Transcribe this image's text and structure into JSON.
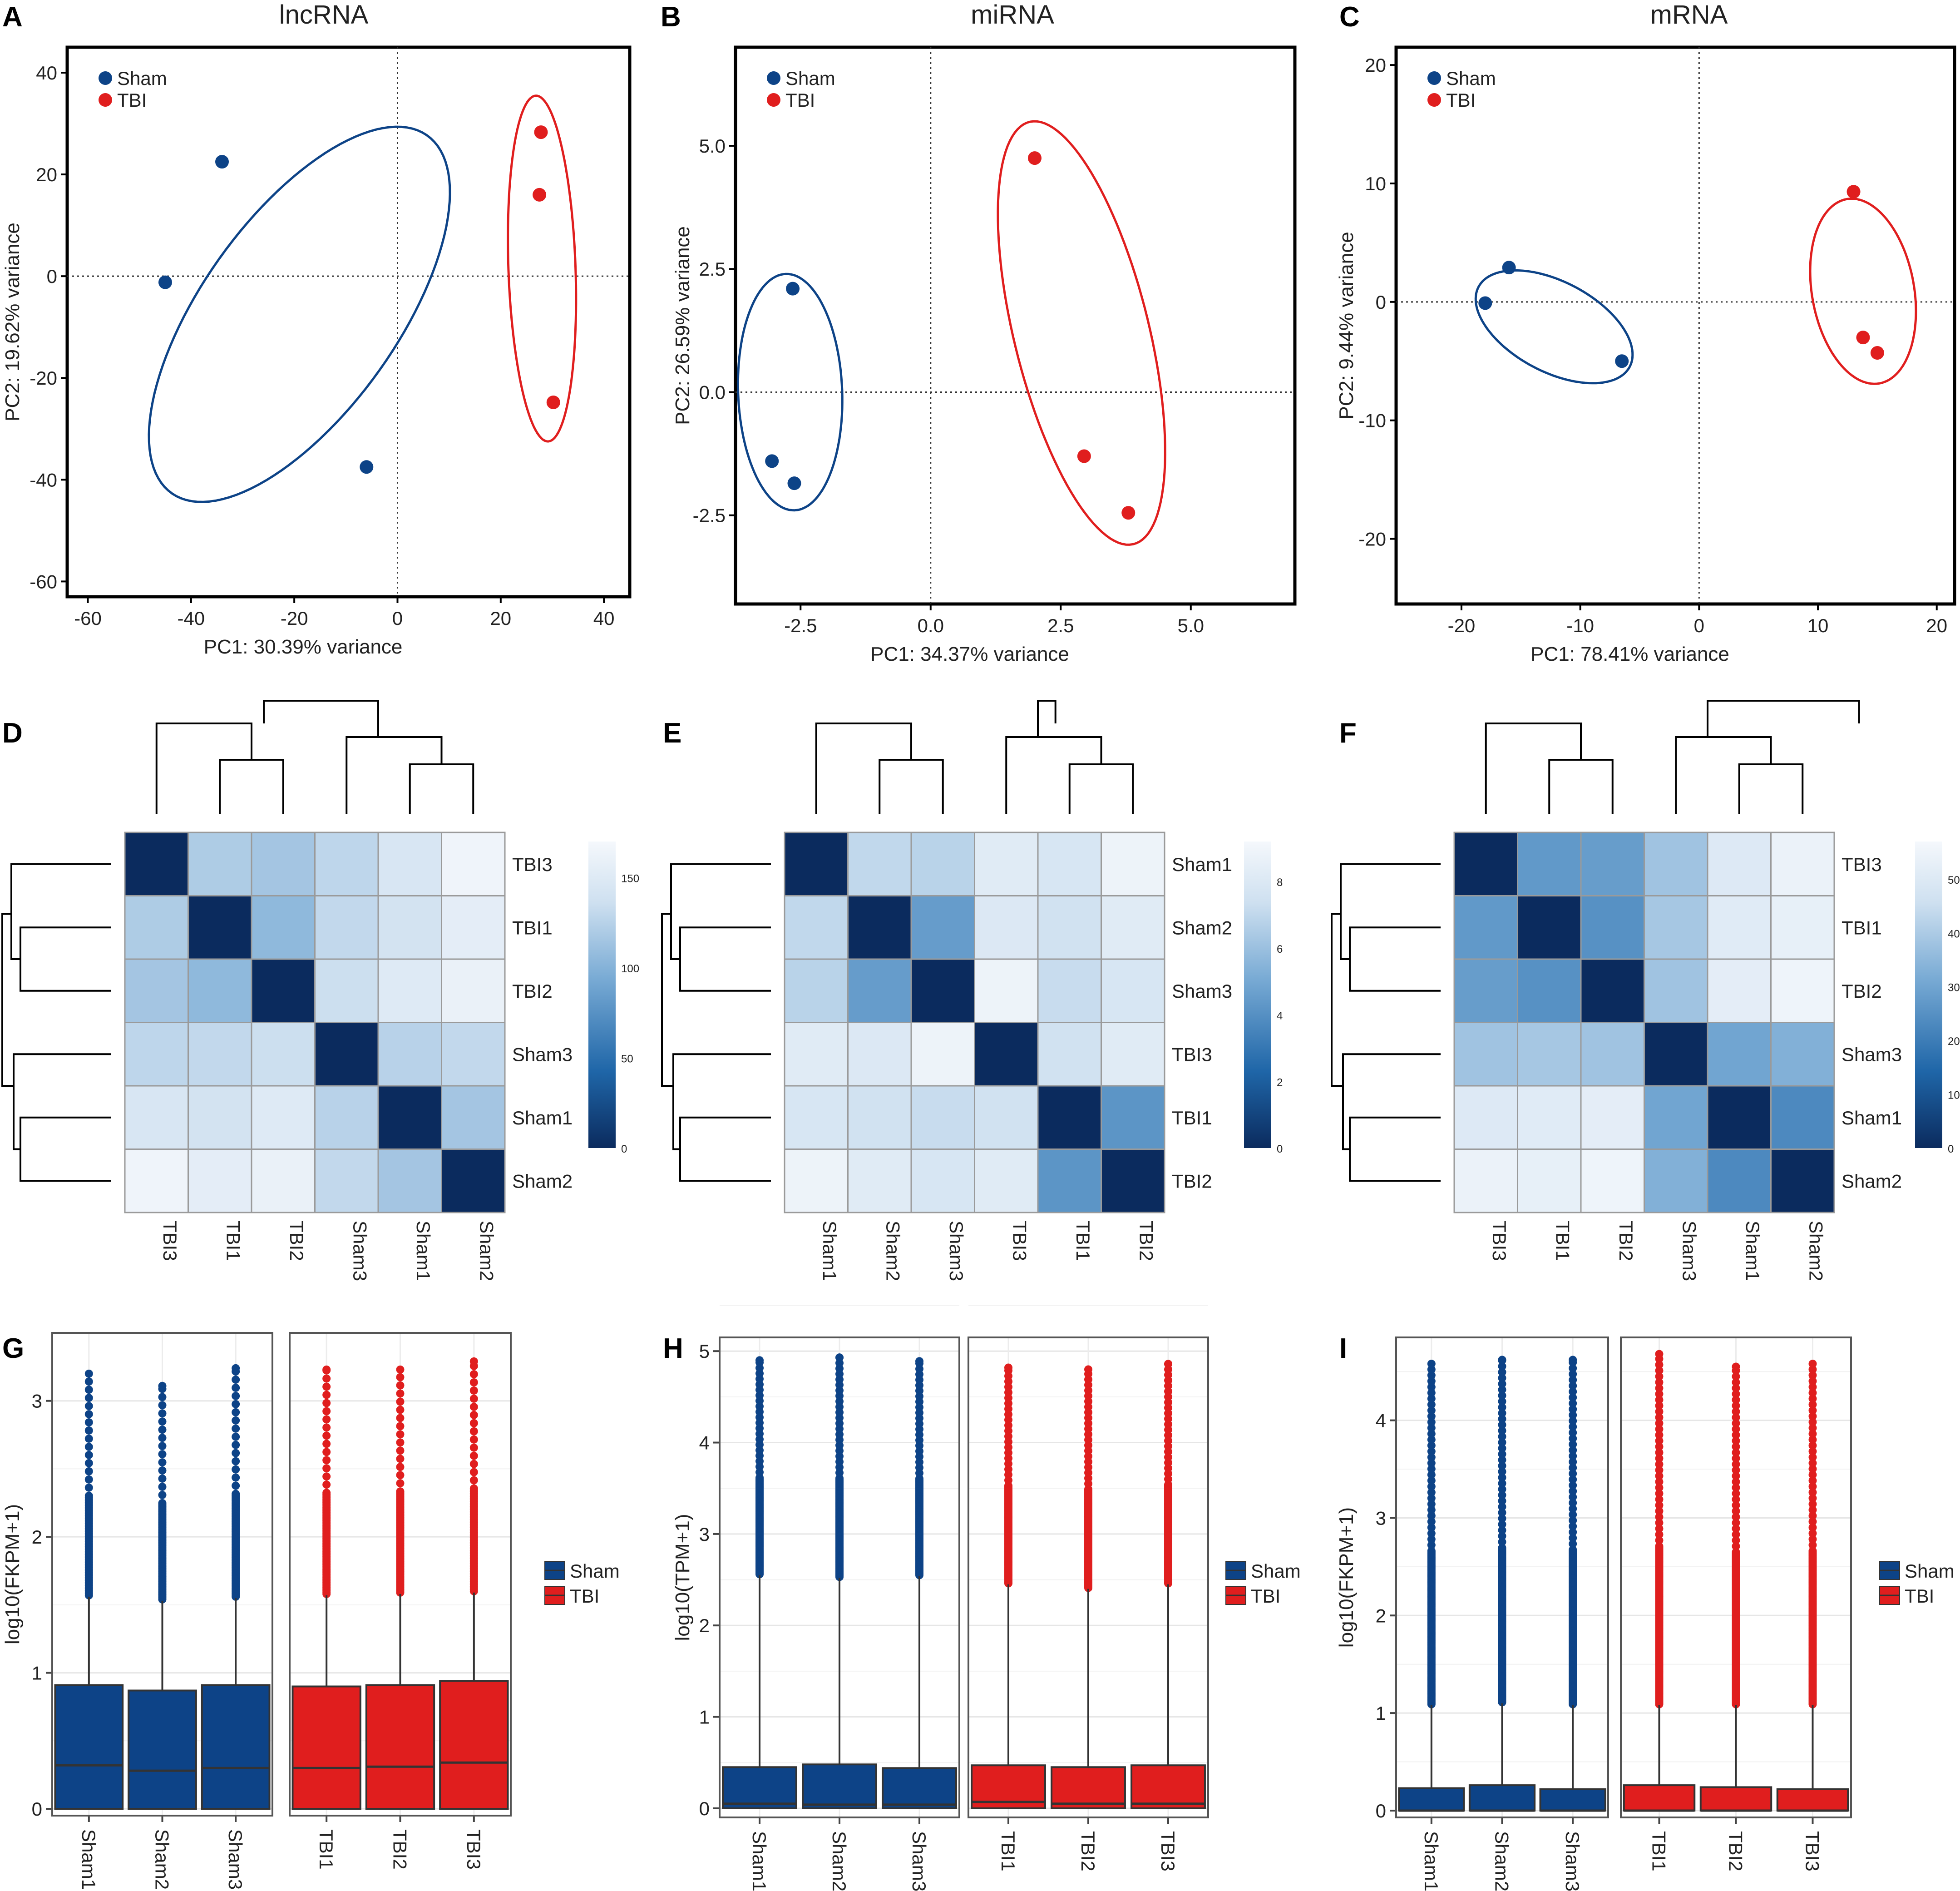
{
  "colors": {
    "sham": "#0D4387",
    "tbi": "#E01E1E",
    "heat_dark": "#0B2B5E",
    "heat_light": "#F5F8FC"
  },
  "chart_data": [
    {
      "panel": "A",
      "type": "scatter",
      "title": "lncRNA",
      "xlabel": "PC1: 30.39% variance",
      "ylabel": "PC2: 19.62% variance",
      "xlim": [
        -64,
        45
      ],
      "ylim": [
        -63,
        45
      ],
      "xticks": [
        -60,
        -40,
        -20,
        0,
        20,
        40
      ],
      "yticks": [
        -60,
        -40,
        -20,
        0,
        20,
        40
      ],
      "xtick_labels": [
        "-60",
        "-40",
        "-20",
        "0",
        "20",
        "40"
      ],
      "ytick_labels": [
        "-60",
        "-40",
        "-20",
        "0",
        "20",
        "40"
      ],
      "legend": [
        "Sham",
        "TBI"
      ],
      "series": [
        {
          "name": "Sham",
          "x": [
            -34,
            -45,
            -6
          ],
          "y": [
            22.5,
            -1.2,
            -37.5
          ],
          "ellipse": {
            "cx": -19,
            "cy": -7.5,
            "rx": 43,
            "ry": 19,
            "angle": 55
          }
        },
        {
          "name": "TBI",
          "x": [
            27.8,
            27.5,
            30.2
          ],
          "y": [
            28.3,
            16,
            -24.8
          ],
          "ellipse": {
            "cx": 28,
            "cy": 1.5,
            "rx": 34,
            "ry": 6.5,
            "angle": 92
          }
        }
      ]
    },
    {
      "panel": "B",
      "type": "scatter",
      "title": "miRNA",
      "xlabel": "PC1: 34.37% variance",
      "ylabel": "PC2: 26.59% variance",
      "xlim": [
        -3.75,
        7
      ],
      "ylim": [
        -4.3,
        7.0
      ],
      "xticks": [
        -2.5,
        0,
        2.5,
        5.0
      ],
      "yticks": [
        -2.5,
        0,
        2.5,
        5.0
      ],
      "xtick_labels": [
        "-2.5",
        "0.0",
        "2.5",
        "5.0"
      ],
      "ytick_labels": [
        "-2.5",
        "0.0",
        "2.5",
        "5.0"
      ],
      "legend": [
        "Sham",
        "TBI"
      ],
      "series": [
        {
          "name": "Sham",
          "x": [
            -2.65,
            -3.05,
            -2.62
          ],
          "y": [
            2.1,
            -1.4,
            -1.85
          ],
          "ellipse": {
            "cx": -2.7,
            "cy": 0,
            "rx": 2.4,
            "ry": 1.0,
            "angle": 92
          }
        },
        {
          "name": "TBI",
          "x": [
            2.0,
            2.95,
            3.8
          ],
          "y": [
            4.75,
            -1.3,
            -2.45
          ],
          "ellipse": {
            "cx": 2.9,
            "cy": 1.2,
            "rx": 4.4,
            "ry": 1.3,
            "angle": 103
          }
        }
      ]
    },
    {
      "panel": "C",
      "type": "scatter",
      "title": "mRNA",
      "xlabel": "PC1: 78.41% variance",
      "ylabel": "PC2: 9.44% variance",
      "xlim": [
        -25.5,
        21.5
      ],
      "ylim": [
        -25.5,
        21.5
      ],
      "xticks": [
        -20,
        -10,
        0,
        10,
        20
      ],
      "yticks": [
        -20,
        -10,
        0,
        10,
        20
      ],
      "xtick_labels": [
        "-20",
        "-10",
        "0",
        "10",
        "20"
      ],
      "ytick_labels": [
        "-20",
        "-10",
        "0",
        "10",
        "20"
      ],
      "legend": [
        "Sham",
        "TBI"
      ],
      "series": [
        {
          "name": "Sham",
          "x": [
            -16,
            -18,
            -6.5
          ],
          "y": [
            2.9,
            -0.1,
            -5.0
          ],
          "ellipse": {
            "cx": -12.2,
            "cy": -2.1,
            "rx": 7.2,
            "ry": 3.8,
            "angle": -28
          }
        },
        {
          "name": "TBI",
          "x": [
            13,
            13.8,
            15
          ],
          "y": [
            9.3,
            -3.0,
            -4.3
          ],
          "ellipse": {
            "cx": 13.8,
            "cy": 0.9,
            "rx": 7.9,
            "ry": 4.3,
            "angle": 100
          }
        }
      ]
    },
    {
      "panel": "D",
      "type": "heatmap",
      "row_labels": [
        "TBI3",
        "TBI1",
        "TBI2",
        "Sham3",
        "Sham1",
        "Sham2"
      ],
      "col_labels": [
        "TBI3",
        "TBI1",
        "TBI2",
        "Sham3",
        "Sham1",
        "Sham2"
      ],
      "colorbar_ticks": [
        "150",
        "100",
        "50",
        "0"
      ],
      "colorbar_values": [
        150,
        100,
        50,
        0
      ],
      "vmax": 170,
      "values": [
        [
          0,
          120,
          115,
          128,
          145,
          165
        ],
        [
          120,
          0,
          105,
          130,
          140,
          155
        ],
        [
          115,
          105,
          0,
          135,
          150,
          160
        ],
        [
          128,
          130,
          135,
          0,
          125,
          130
        ],
        [
          145,
          140,
          150,
          125,
          0,
          115
        ],
        [
          165,
          155,
          160,
          130,
          115,
          0
        ]
      ]
    },
    {
      "panel": "E",
      "type": "heatmap",
      "row_labels": [
        "Sham1",
        "Sham2",
        "Sham3",
        "TBI3",
        "TBI1",
        "TBI2"
      ],
      "col_labels": [
        "Sham1",
        "Sham2",
        "Sham3",
        "TBI3",
        "TBI1",
        "TBI2"
      ],
      "colorbar_ticks": [
        "8",
        "6",
        "4",
        "2",
        "0"
      ],
      "colorbar_values": [
        8,
        6,
        4,
        2,
        0
      ],
      "vmax": 9.2,
      "values": [
        [
          0,
          7.0,
          6.8,
          8.2,
          7.8,
          8.8
        ],
        [
          7.0,
          0,
          4.5,
          8.0,
          7.5,
          8.2
        ],
        [
          6.8,
          4.5,
          0,
          8.8,
          7.2,
          7.8
        ],
        [
          8.2,
          8.0,
          8.8,
          0,
          7.5,
          8.2
        ],
        [
          7.8,
          7.5,
          7.2,
          7.5,
          0,
          4.2
        ],
        [
          8.8,
          8.2,
          7.8,
          8.2,
          4.2,
          0
        ]
      ]
    },
    {
      "panel": "F",
      "type": "heatmap",
      "row_labels": [
        "TBI3",
        "TBI1",
        "TBI2",
        "Sham3",
        "Sham1",
        "Sham2"
      ],
      "col_labels": [
        "TBI3",
        "TBI1",
        "TBI2",
        "Sham3",
        "Sham1",
        "Sham2"
      ],
      "colorbar_ticks": [
        "50",
        "40",
        "30",
        "20",
        "10",
        "0"
      ],
      "colorbar_values": [
        50,
        40,
        30,
        20,
        10,
        0
      ],
      "vmax": 57,
      "values": [
        [
          0,
          27,
          28,
          38,
          50,
          54
        ],
        [
          27,
          0,
          25,
          39,
          51,
          53
        ],
        [
          28,
          25,
          0,
          38,
          52,
          55
        ],
        [
          38,
          39,
          38,
          0,
          30,
          33
        ],
        [
          50,
          51,
          52,
          30,
          0,
          23
        ],
        [
          54,
          53,
          55,
          33,
          23,
          0
        ]
      ]
    },
    {
      "panel": "G",
      "type": "boxplot",
      "ylabel": "log10(FKPM+1)",
      "ylim": [
        -0.05,
        3.5
      ],
      "yticks": [
        0,
        1,
        2,
        3
      ],
      "ytick_labels": [
        "0",
        "1",
        "2",
        "3"
      ],
      "legend": [
        "Sham",
        "TBI"
      ],
      "facets": [
        {
          "group": "Sham",
          "samples": [
            "Sham1",
            "Sham2",
            "Sham3"
          ],
          "q1": [
            0,
            0,
            0
          ],
          "median": [
            0.32,
            0.28,
            0.3
          ],
          "q3": [
            0.91,
            0.87,
            0.91
          ],
          "whisker_hi": [
            1.56,
            1.53,
            1.55
          ],
          "outlier_max": [
            3.2,
            3.11,
            3.24
          ]
        },
        {
          "group": "TBI",
          "samples": [
            "TBI1",
            "TBI2",
            "TBI3"
          ],
          "q1": [
            0,
            0,
            0
          ],
          "median": [
            0.3,
            0.31,
            0.34
          ],
          "q3": [
            0.9,
            0.91,
            0.94
          ],
          "whisker_hi": [
            1.57,
            1.58,
            1.59
          ],
          "outlier_max": [
            3.23,
            3.23,
            3.29
          ]
        }
      ]
    },
    {
      "panel": "H",
      "type": "boxplot",
      "ylabel": "log10(TPM+1)",
      "ylim": [
        -0.1,
        5.15
      ],
      "yticks": [
        0,
        1,
        2,
        3,
        4,
        5
      ],
      "ytick_labels": [
        "0",
        "1",
        "2",
        "3",
        "4",
        "5"
      ],
      "legend": [
        "Sham",
        "TBI"
      ],
      "facets": [
        {
          "group": "Sham",
          "samples": [
            "Sham1",
            "Sham2",
            "Sham3"
          ],
          "q1": [
            0,
            0,
            0
          ],
          "median": [
            0.05,
            0.04,
            0.04
          ],
          "q3": [
            0.45,
            0.48,
            0.44
          ],
          "whisker_hi": [
            2.55,
            2.52,
            2.54
          ],
          "outlier_max": [
            4.9,
            4.93,
            4.89
          ]
        },
        {
          "group": "TBI",
          "samples": [
            "TBI1",
            "TBI2",
            "TBI3"
          ],
          "q1": [
            0,
            0,
            0
          ],
          "median": [
            0.07,
            0.05,
            0.05
          ],
          "q3": [
            0.47,
            0.45,
            0.47
          ],
          "whisker_hi": [
            2.45,
            2.4,
            2.45
          ],
          "outlier_max": [
            4.82,
            4.8,
            4.86
          ]
        }
      ]
    },
    {
      "panel": "I",
      "type": "boxplot",
      "ylabel": "log10(FKPM+1)",
      "ylim": [
        -0.07,
        4.85
      ],
      "yticks": [
        0,
        1,
        2,
        3,
        4
      ],
      "ytick_labels": [
        "0",
        "1",
        "2",
        "3",
        "4"
      ],
      "legend": [
        "Sham",
        "TBI"
      ],
      "facets": [
        {
          "group": "Sham",
          "samples": [
            "Sham1",
            "Sham2",
            "Sham3"
          ],
          "q1": [
            0,
            0,
            0
          ],
          "median": [
            0.0,
            0.0,
            0.0
          ],
          "q3": [
            0.23,
            0.26,
            0.22
          ],
          "whisker_hi": [
            1.08,
            1.1,
            1.08
          ],
          "outlier_max": [
            4.58,
            4.62,
            4.62
          ]
        },
        {
          "group": "TBI",
          "samples": [
            "TBI1",
            "TBI2",
            "TBI3"
          ],
          "q1": [
            0,
            0,
            0
          ],
          "median": [
            0.0,
            0.0,
            0.0
          ],
          "q3": [
            0.26,
            0.24,
            0.22
          ],
          "whisker_hi": [
            1.08,
            1.08,
            1.08
          ],
          "outlier_max": [
            4.68,
            4.55,
            4.58
          ]
        }
      ]
    }
  ],
  "panel_letters": [
    "A",
    "B",
    "C",
    "D",
    "E",
    "F",
    "G",
    "H",
    "I"
  ]
}
